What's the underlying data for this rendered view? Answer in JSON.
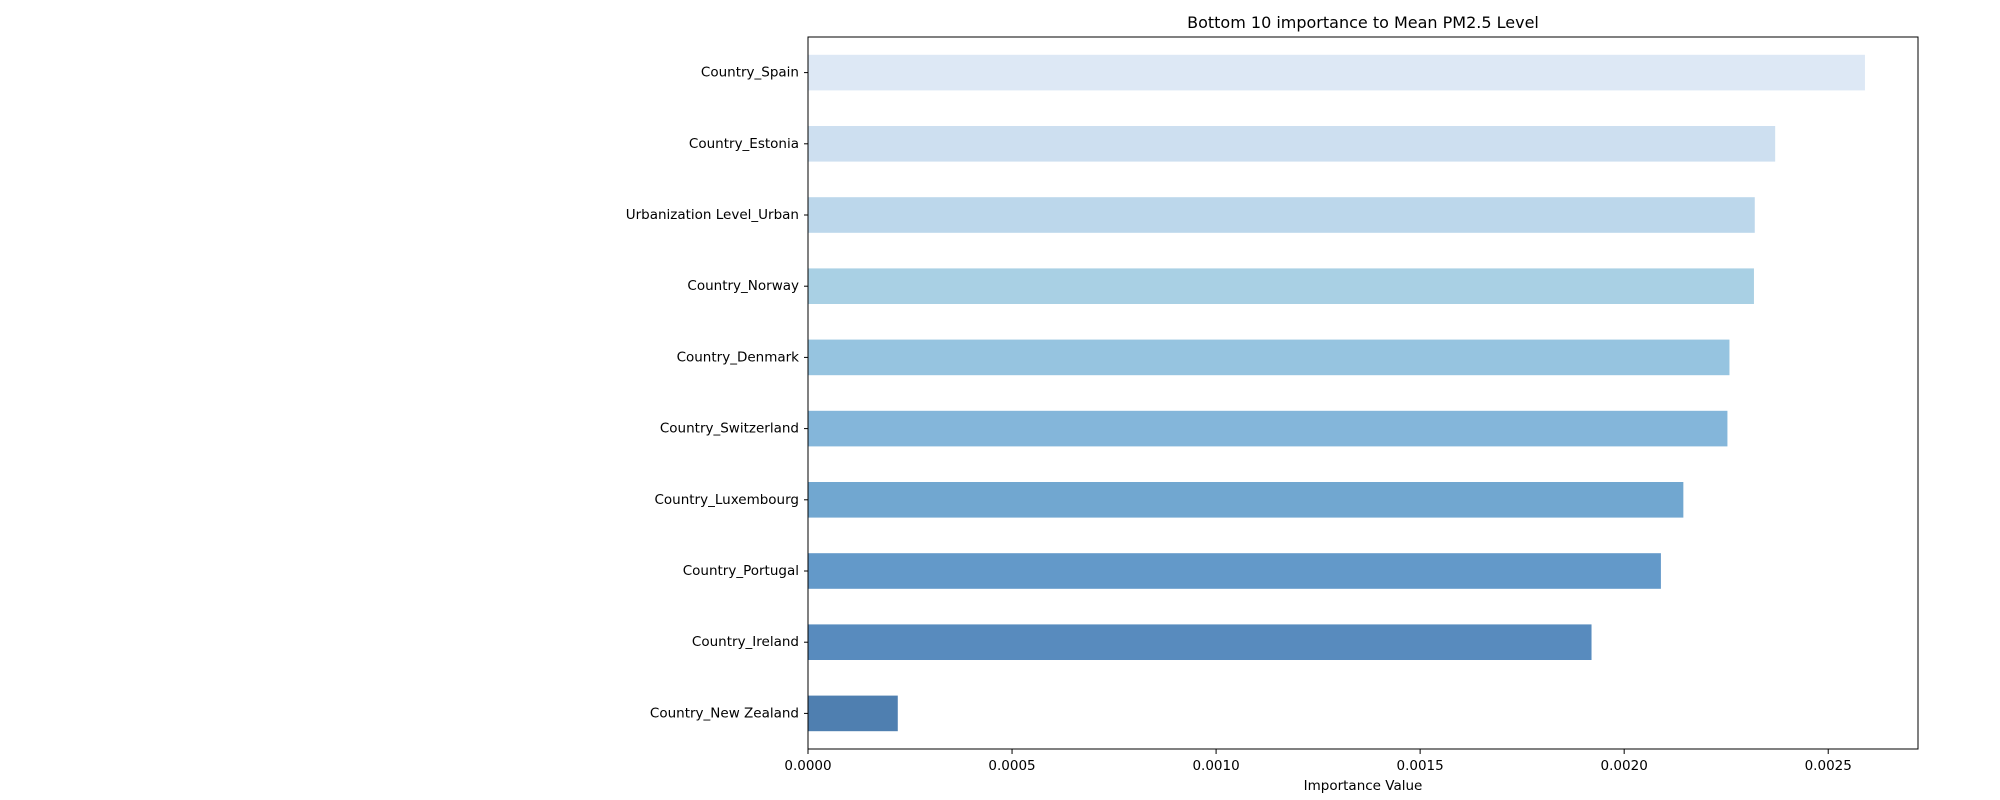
{
  "chart_data": {
    "type": "bar",
    "orientation": "horizontal",
    "title": "Bottom 10 importance to Mean PM2.5 Level",
    "xlabel": "Importance Value",
    "ylabel": "",
    "xlim": [
      0,
      0.00272
    ],
    "x_ticks": [
      0.0,
      0.0005,
      0.001,
      0.0015,
      0.002,
      0.0025
    ],
    "x_tick_labels": [
      "0.0000",
      "0.0005",
      "0.0010",
      "0.0015",
      "0.0020",
      "0.0025"
    ],
    "grid": false,
    "legend": "none",
    "categories": [
      "Country_Spain",
      "Country_Estonia",
      "Urbanization Level_Urban",
      "Country_Norway",
      "Country_Denmark",
      "Country_Switzerland",
      "Country_Luxembourg",
      "Country_Portugal",
      "Country_Ireland",
      "Country_New Zealand"
    ],
    "values": [
      0.00259,
      0.00237,
      0.00232,
      0.002318,
      0.002258,
      0.002253,
      0.002145,
      0.00209,
      0.00192,
      0.00022
    ],
    "colors": [
      "#dde8f5",
      "#cddff0",
      "#bcd7eb",
      "#a9d0e4",
      "#96c4e0",
      "#84b6da",
      "#71a7d0",
      "#6399c9",
      "#588bbe",
      "#4f7fb0"
    ]
  }
}
